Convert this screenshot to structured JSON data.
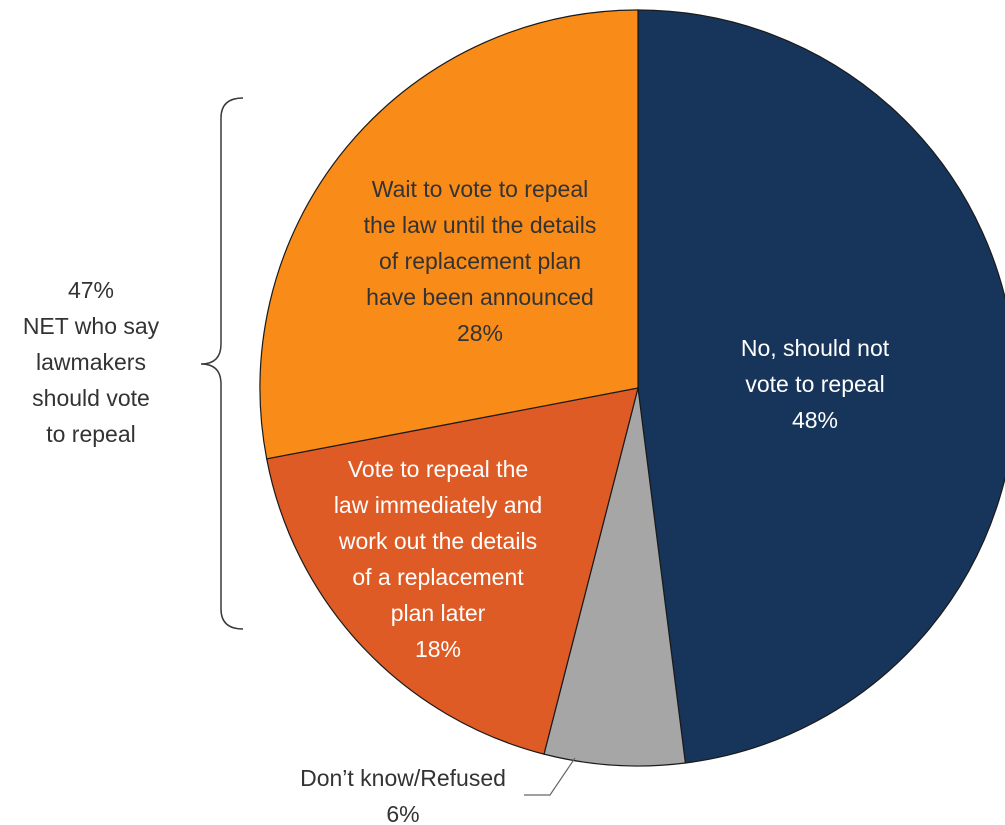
{
  "chart_data": {
    "type": "pie",
    "slices": [
      {
        "name": "No, should not vote to repeal",
        "value": 48,
        "label_lines": [
          "No, should not",
          "vote to repeal",
          "48%"
        ],
        "color": "#17355a",
        "text_color": "#ffffff"
      },
      {
        "name": "Don’t know/Refused",
        "value": 6,
        "label_lines": [
          "Don’t know/Refused",
          "6%"
        ],
        "color": "#a6a6a6",
        "text_color": "#333333"
      },
      {
        "name": "Vote to repeal the law immediately and work out the details of a replacement plan later",
        "value": 18,
        "label_lines": [
          "Vote to repeal the",
          "law immediately and",
          "work out the details",
          "of a replacement",
          "plan later",
          "18%"
        ],
        "color": "#de5b26",
        "text_color": "#ffffff"
      },
      {
        "name": "Wait to vote to repeal the law until the details of replacement plan have been announced",
        "value": 28,
        "label_lines": [
          "Wait to vote to repeal",
          "the law until the details",
          "of replacement plan",
          "have been announced",
          "28%"
        ],
        "color": "#f98b18",
        "text_color": "#333333"
      }
    ],
    "annotation": {
      "lines": [
        "47%",
        "NET who say",
        "lawmakers",
        "should vote",
        "to repeal"
      ]
    }
  }
}
